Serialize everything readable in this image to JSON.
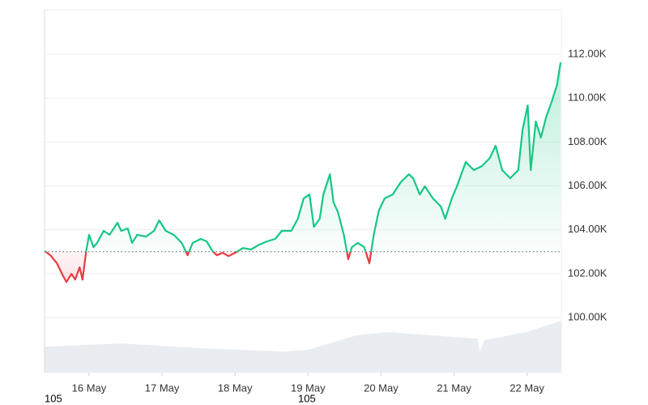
{
  "chart_data": {
    "type": "line",
    "x": [
      15.39,
      15.47,
      15.56,
      15.64,
      15.69,
      15.76,
      15.81,
      15.87,
      15.91,
      15.96,
      16.0,
      16.06,
      16.11,
      16.2,
      16.28,
      16.39,
      16.44,
      16.53,
      16.59,
      16.66,
      16.78,
      16.89,
      16.96,
      17.05,
      17.16,
      17.27,
      17.35,
      17.42,
      17.53,
      17.61,
      17.69,
      17.75,
      17.83,
      17.91,
      18.0,
      18.11,
      18.22,
      18.33,
      18.44,
      18.55,
      18.64,
      18.77,
      18.86,
      18.94,
      19.02,
      19.08,
      19.16,
      19.21,
      19.3,
      19.35,
      19.41,
      19.49,
      19.55,
      19.6,
      19.68,
      19.77,
      19.84,
      19.9,
      19.97,
      20.05,
      20.16,
      20.27,
      20.38,
      20.44,
      20.53,
      20.6,
      20.71,
      20.82,
      20.88,
      20.97,
      21.04,
      21.16,
      21.27,
      21.38,
      21.49,
      21.57,
      21.66,
      21.77,
      21.88,
      21.94,
      22.01,
      22.05,
      22.12,
      22.19,
      22.26,
      22.34,
      22.41,
      22.46
    ],
    "values": [
      103030,
      102840,
      102470,
      101920,
      101620,
      101990,
      101730,
      102290,
      101730,
      103030,
      103770,
      103210,
      103400,
      103950,
      103770,
      104320,
      103950,
      104060,
      103400,
      103770,
      103690,
      103950,
      104430,
      103950,
      103770,
      103400,
      102840,
      103400,
      103580,
      103470,
      103030,
      102840,
      102950,
      102800,
      102950,
      103170,
      103100,
      103320,
      103470,
      103580,
      103950,
      103950,
      104500,
      105430,
      105610,
      104130,
      104500,
      105610,
      106530,
      105240,
      104800,
      103770,
      102660,
      103210,
      103400,
      103210,
      102470,
      103770,
      104870,
      105430,
      105610,
      106170,
      106530,
      106350,
      105610,
      105980,
      105430,
      105060,
      104500,
      105430,
      105980,
      107090,
      106720,
      106900,
      107270,
      107830,
      106720,
      106350,
      106720,
      108570,
      109670,
      106720,
      108940,
      108200,
      109120,
      109860,
      110600,
      111630
    ],
    "baseline": 103000,
    "up_color": "#16c784",
    "down_color": "#ea3943",
    "xlim": [
      15.39,
      22.47
    ],
    "xticks": [
      {
        "value": 16,
        "label": "16 May"
      },
      {
        "value": 17,
        "label": "17 May"
      },
      {
        "value": 18,
        "label": "18 May"
      },
      {
        "value": 19,
        "label": "19 May"
      },
      {
        "value": 20,
        "label": "20 May"
      },
      {
        "value": 21,
        "label": "21 May"
      },
      {
        "value": 22,
        "label": "22 May"
      }
    ],
    "ylim": [
      97490,
      114030
    ],
    "yticks": [
      {
        "value": 100000,
        "label": "100.00K"
      },
      {
        "value": 102000,
        "label": "102.00K"
      },
      {
        "value": 104000,
        "label": "104.00K"
      },
      {
        "value": 106000,
        "label": "106.00K"
      },
      {
        "value": 108000,
        "label": "108.00K"
      },
      {
        "value": 110000,
        "label": "110.00K"
      },
      {
        "value": 112000,
        "label": "112.00K"
      }
    ],
    "grid": true,
    "footnotes": [
      "105",
      "105"
    ]
  }
}
